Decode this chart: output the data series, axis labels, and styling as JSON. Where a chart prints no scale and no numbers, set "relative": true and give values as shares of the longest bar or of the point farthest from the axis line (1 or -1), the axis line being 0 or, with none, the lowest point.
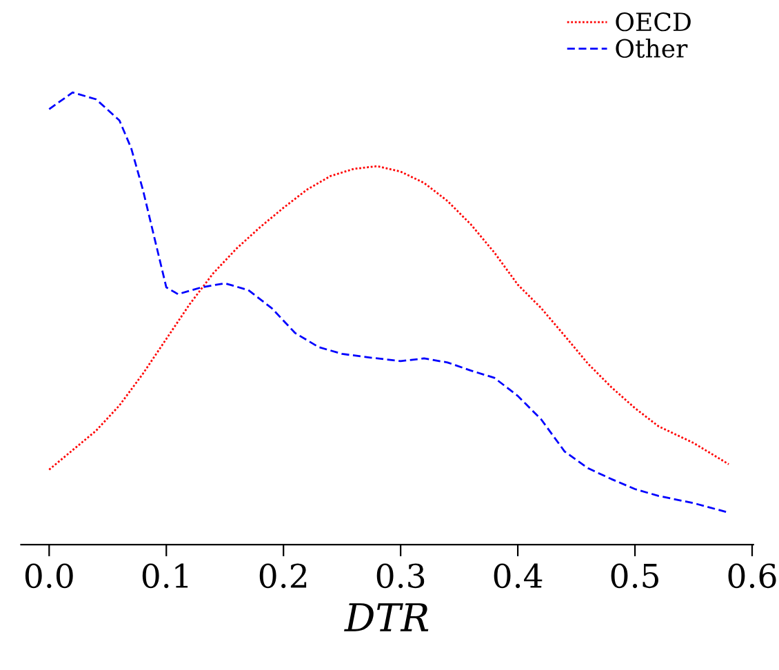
{
  "chart_data": {
    "type": "line",
    "relative": true,
    "xlabel": "DTR",
    "xlim": [
      -0.024,
      0.601
    ],
    "xticks": [
      {
        "value": 0,
        "label": "0.0"
      },
      {
        "value": 0.1,
        "label": "0.1"
      },
      {
        "value": 0.2,
        "label": "0.2"
      },
      {
        "value": 0.3,
        "label": "0.3"
      },
      {
        "value": 0.4,
        "label": "0.4"
      },
      {
        "value": 0.5,
        "label": "0.5"
      },
      {
        "value": 0.6,
        "label": "0.6"
      }
    ],
    "grid": false,
    "legend": "top right",
    "tick_labels": "x",
    "series": [
      {
        "name": "OECD",
        "color": "#ff0000",
        "line_style": "dotted",
        "x": [
          0,
          0.02,
          0.04,
          0.06,
          0.08,
          0.1,
          0.12,
          0.14,
          0.16,
          0.18,
          0.2,
          0.22,
          0.24,
          0.26,
          0.28,
          0.3,
          0.32,
          0.34,
          0.36,
          0.38,
          0.4,
          0.42,
          0.44,
          0.46,
          0.48,
          0.5,
          0.52,
          0.55,
          0.58
        ],
        "values": [
          0.166,
          0.209,
          0.252,
          0.308,
          0.378,
          0.455,
          0.532,
          0.6,
          0.655,
          0.702,
          0.745,
          0.785,
          0.815,
          0.831,
          0.837,
          0.825,
          0.8,
          0.76,
          0.708,
          0.646,
          0.575,
          0.523,
          0.462,
          0.4,
          0.348,
          0.302,
          0.262,
          0.225,
          0.178
        ]
      },
      {
        "name": "Other",
        "color": "#0000ff",
        "line_style": "dashed",
        "x": [
          0,
          0.02,
          0.04,
          0.06,
          0.07,
          0.08,
          0.09,
          0.1,
          0.11,
          0.13,
          0.15,
          0.17,
          0.19,
          0.21,
          0.23,
          0.25,
          0.27,
          0.3,
          0.32,
          0.34,
          0.36,
          0.38,
          0.4,
          0.42,
          0.44,
          0.46,
          0.48,
          0.5,
          0.52,
          0.55,
          0.58
        ],
        "values": [
          0.963,
          1.0,
          0.985,
          0.938,
          0.877,
          0.785,
          0.677,
          0.569,
          0.554,
          0.569,
          0.578,
          0.563,
          0.523,
          0.468,
          0.437,
          0.422,
          0.415,
          0.406,
          0.412,
          0.403,
          0.385,
          0.369,
          0.329,
          0.277,
          0.206,
          0.169,
          0.145,
          0.123,
          0.108,
          0.092,
          0.071
        ]
      }
    ]
  }
}
